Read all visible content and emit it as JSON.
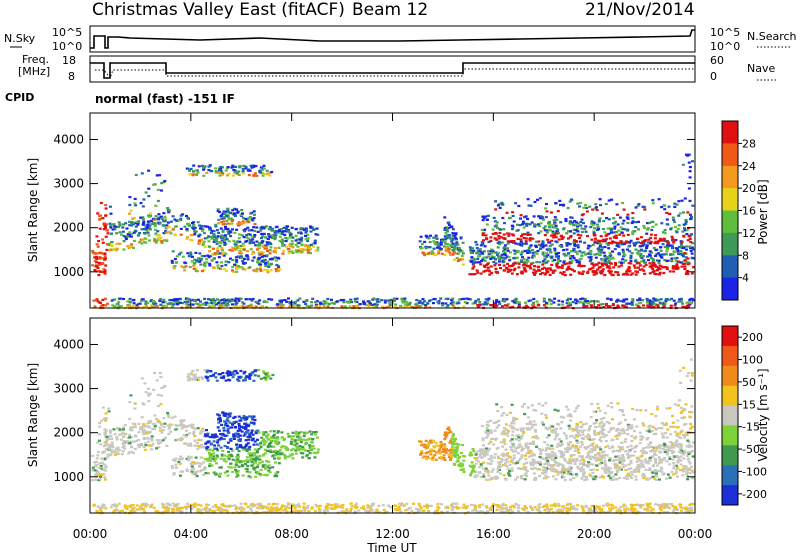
{
  "header": {
    "title": "Christmas Valley East (fitACF)",
    "beam": "Beam 12",
    "date": "21/Nov/2014"
  },
  "params": {
    "nsky_label": "N.Sky",
    "nsky_ticks": [
      "10^5",
      "10^0"
    ],
    "nsearch_label": "N.Search",
    "nsearch_ticks": [
      "10^5",
      "10^0"
    ],
    "freq_label": "Freq.",
    "freq_unit": "[MHz]",
    "freq_ticks": [
      "18",
      "8"
    ],
    "nave_label": "Nave",
    "nave_ticks": [
      "60",
      "0"
    ],
    "cpid_label": "CPID",
    "cpid_text": "normal (fast) -151 IF"
  },
  "chart_data": [
    {
      "type": "heatmap",
      "quantity": "Power",
      "ylabel": "Slant Range [km]",
      "xlabel": "",
      "ylim": [
        180,
        4600
      ],
      "yticks": [
        "1000",
        "2000",
        "3000",
        "4000"
      ],
      "colorbar_label": "Power [dB]",
      "colorbar_ticks": [
        "4",
        "8",
        "12",
        "16",
        "20",
        "24",
        "28"
      ],
      "colors": [
        "#1a23e6",
        "#1e5fb4",
        "#3f9a5a",
        "#5fbf3c",
        "#e8d21a",
        "#f39a1e",
        "#f05a14",
        "#e01010"
      ]
    },
    {
      "type": "heatmap",
      "quantity": "Velocity",
      "ylabel": "Slant Range [km]",
      "xlabel": "Time UT",
      "ylim": [
        180,
        4600
      ],
      "yticks": [
        "1000",
        "2000",
        "3000",
        "4000"
      ],
      "xticks": [
        "00:00",
        "04:00",
        "08:00",
        "12:00",
        "16:00",
        "20:00",
        "00:00"
      ],
      "colorbar_label": "Velocity [m s⁻¹]",
      "colorbar_ticks": [
        "200",
        "100",
        "50",
        "15",
        "-15",
        "-50",
        "-100",
        "-200"
      ],
      "colors": [
        "#1b2fd6",
        "#2a6fb8",
        "#3f9a4e",
        "#7ed23a",
        "#c8c8c0",
        "#f2c21e",
        "#f08a1a",
        "#f0581a",
        "#e01010"
      ]
    }
  ]
}
